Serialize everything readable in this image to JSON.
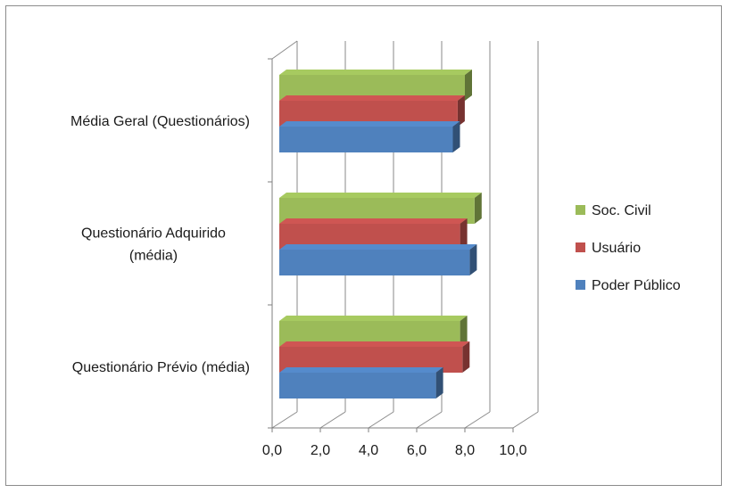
{
  "chart_data": {
    "type": "bar",
    "orientation": "horizontal",
    "three_d": true,
    "categories": [
      [
        "Média Geral (Questionários)"
      ],
      [
        "Questionário Adquirido",
        "(média)"
      ],
      [
        "Questionário Prévio (média)"
      ]
    ],
    "series": [
      {
        "name": "Soc. Civil",
        "color": "#9BBB59",
        "values": [
          8.0,
          8.4,
          7.8
        ]
      },
      {
        "name": "Usuário",
        "color": "#C0504D",
        "values": [
          7.7,
          7.8,
          7.9
        ]
      },
      {
        "name": "Poder Público",
        "color": "#4F81BD",
        "values": [
          7.5,
          8.2,
          6.8
        ]
      }
    ],
    "x_ticks": [
      "0,0",
      "2,0",
      "4,0",
      "6,0",
      "8,0",
      "10,0"
    ],
    "xlim": [
      0,
      10
    ],
    "grid": true,
    "legend": "right"
  }
}
